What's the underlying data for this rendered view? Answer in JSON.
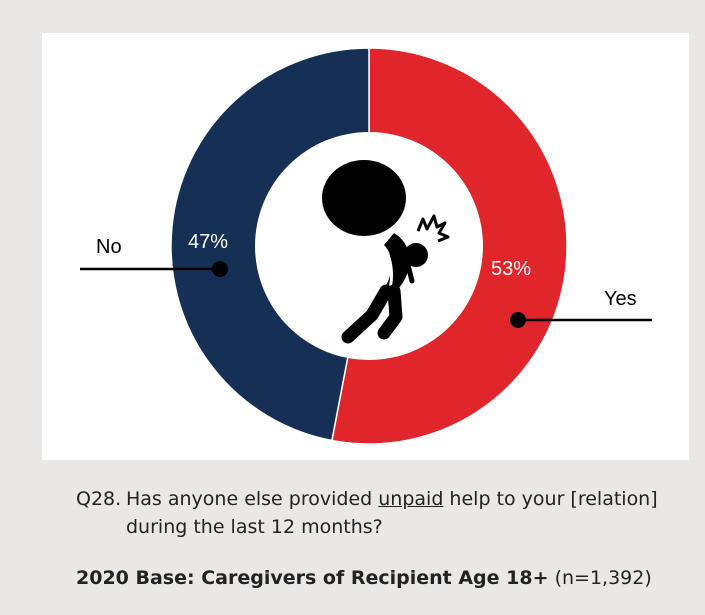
{
  "chart_data": {
    "type": "pie",
    "categories": [
      "Yes",
      "No"
    ],
    "values": [
      53,
      47
    ],
    "value_labels": [
      "53%",
      "47%"
    ],
    "colors": [
      "#e0262b",
      "#152f55"
    ],
    "donut": true,
    "center_icon": "person-carrying-heavy-burden-icon"
  },
  "question": {
    "number": "Q28.",
    "text_before": "Has anyone else provided ",
    "text_underlined": "unpaid",
    "text_after": " help to your [relation] during the last 12 months?"
  },
  "base": {
    "bold": "2020 Base: Caregivers of Recipient Age 18+",
    "count": "(n=1,392)"
  }
}
